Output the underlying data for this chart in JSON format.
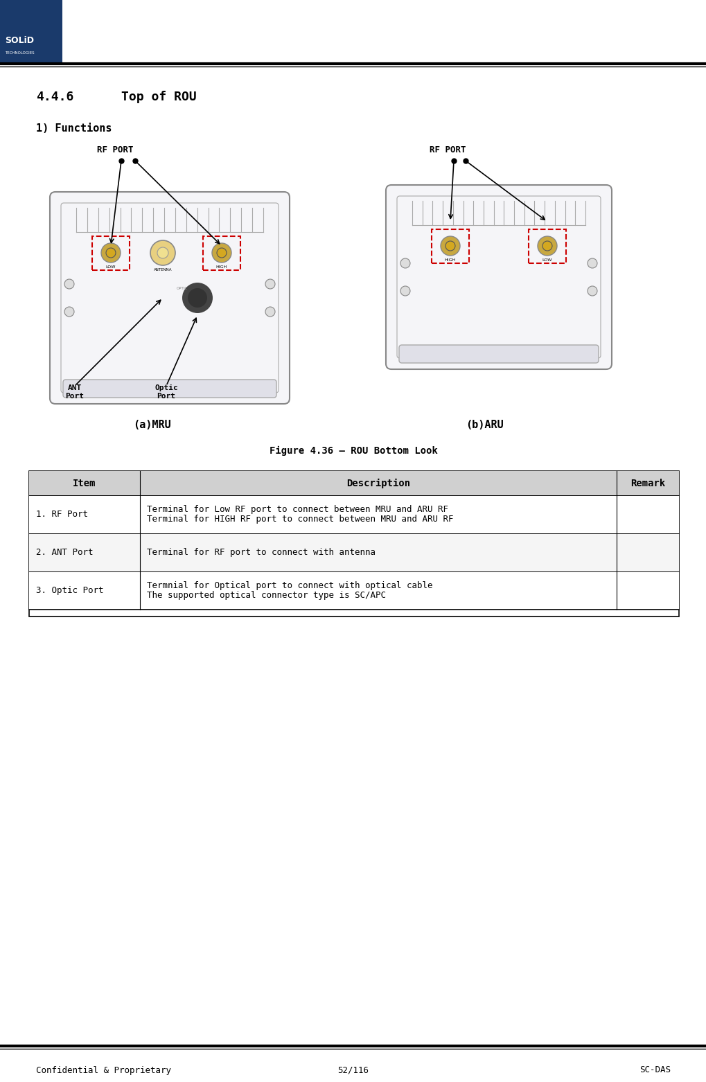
{
  "title_section": "4.4.6",
  "title_text": "Top of ROU",
  "subtitle": "1) Functions",
  "figure_caption": "Figure 4.36 – ROU Bottom Look",
  "label_mru": "(a)MRU",
  "label_aru": "(b)ARU",
  "label_rf_port": "RF PORT",
  "footer_left": "Confidential & Proprietary",
  "footer_center": "52/116",
  "footer_right": "SC-DAS",
  "bg_color": "#ffffff",
  "header_bar_color": "#000000",
  "table_header_bg": "#d0d0d0",
  "table_row1_bg": "#ffffff",
  "table_row2_bg": "#f0f0f0",
  "table_header_color": "#000000",
  "table_items": [
    {
      "item": "1. RF Port",
      "description": "Terminal for Low RF port to connect between MRU and ARU RF\nTerminal for HIGH RF port to connect between MRU and ARU RF",
      "remark": ""
    },
    {
      "item": "2. ANT Port",
      "description": "Terminal for RF port to connect with antenna",
      "remark": ""
    },
    {
      "item": "3. Optic Port",
      "description": "Termnial for Optical port to connect with optical cable\nThe supported optical connector type is SC/APC",
      "remark": ""
    }
  ],
  "solid_blue": "#1a3a6b",
  "dashed_red": "#cc0000",
  "arrow_color": "#000000",
  "port_gold": "#c8a840",
  "port_ant_color": "#e8d080"
}
